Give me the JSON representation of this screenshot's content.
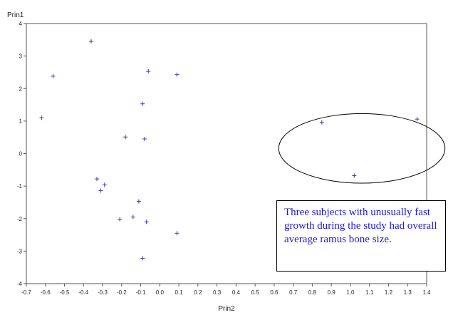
{
  "chart_data": {
    "type": "scatter",
    "xlabel": "Prin2",
    "ylabel": "Prin1",
    "xlim": [
      -0.7,
      1.4
    ],
    "ylim": [
      -4,
      4
    ],
    "xticks": [
      "-0.7",
      "-0.6",
      "-0.5",
      "-0.4",
      "-0.3",
      "-0.2",
      "-0.1",
      "0.0",
      "0.1",
      "0.2",
      "0.3",
      "0.4",
      "0.5",
      "0.6",
      "0.7",
      "0.8",
      "0.9",
      "1.0",
      "1.1",
      "1.2",
      "1.3",
      "1.4"
    ],
    "yticks": [
      "4",
      "3",
      "2",
      "1",
      "0",
      "-1",
      "-2",
      "-3",
      "-4"
    ],
    "grid": false,
    "marker": "plus",
    "marker_color": "#3a3ab8",
    "points": [
      {
        "x": -0.36,
        "y": 3.45
      },
      {
        "x": -0.56,
        "y": 2.38
      },
      {
        "x": -0.06,
        "y": 2.53
      },
      {
        "x": 0.09,
        "y": 2.43
      },
      {
        "x": -0.09,
        "y": 1.53
      },
      {
        "x": -0.62,
        "y": 1.1
      },
      {
        "x": -0.18,
        "y": 0.51
      },
      {
        "x": -0.08,
        "y": 0.45
      },
      {
        "x": -0.33,
        "y": -0.78
      },
      {
        "x": -0.29,
        "y": -0.96
      },
      {
        "x": -0.31,
        "y": -1.14
      },
      {
        "x": -0.11,
        "y": -1.47
      },
      {
        "x": -0.21,
        "y": -2.02
      },
      {
        "x": -0.14,
        "y": -1.95
      },
      {
        "x": -0.07,
        "y": -2.1
      },
      {
        "x": 0.09,
        "y": -2.45
      },
      {
        "x": -0.09,
        "y": -3.22
      },
      {
        "x": 0.85,
        "y": 0.96
      },
      {
        "x": 1.35,
        "y": 1.06
      },
      {
        "x": 1.02,
        "y": -0.68
      }
    ],
    "highlight_ellipse": {
      "cx": 1.06,
      "cy": 0.16,
      "rx": 0.436,
      "ry": 1.07
    },
    "annotation": "Three subjects with unusually fast growth during the study had overall average ramus bone size.",
    "annotation_color": "#1a1adc"
  }
}
